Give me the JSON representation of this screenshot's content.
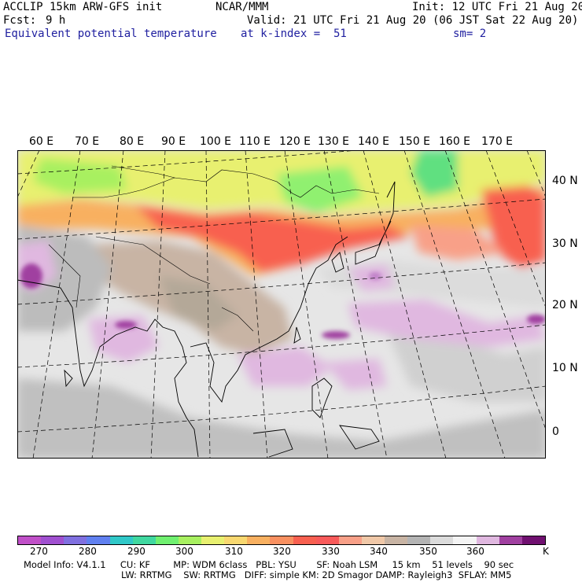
{
  "header": {
    "model": "ACCLIP 15km ARW-GFS init",
    "org": "NCAR/MMM",
    "init": "Init: 12 UTC Fri 21 Aug 20",
    "fcst_label": "Fcst:",
    "fcst_value": "9 h",
    "valid": "Valid: 21 UTC Fri 21 Aug 20 (06 JST Sat 22 Aug 20)",
    "field": "Equivalent potential temperature",
    "level": "at k-index =  51",
    "smooth": "sm= 2"
  },
  "map": {
    "lon_labels": [
      "60 E",
      "70 E",
      "80 E",
      "90 E",
      "100 E",
      "110 E",
      "120 E",
      "130 E",
      "140 E",
      "150 E",
      "160 E",
      "170 E"
    ],
    "lat_labels": [
      "40 N",
      "30 N",
      "20 N",
      "10 N",
      "0"
    ]
  },
  "colorbar": {
    "colors": [
      "#c050c8",
      "#a050d0",
      "#8070e0",
      "#6080f0",
      "#30c8c8",
      "#40d8a0",
      "#70f070",
      "#a8f060",
      "#e8f070",
      "#f8d870",
      "#f8b060",
      "#f89060",
      "#f86050",
      "#f85a5a",
      "#f8a088",
      "#f0c8a8",
      "#c8b4a4",
      "#b4b4b4",
      "#dcdcdc",
      "#f4f4f4",
      "#e0b8e0",
      "#a040a0",
      "#701070"
    ],
    "labels": [
      "270",
      "280",
      "290",
      "300",
      "310",
      "320",
      "330",
      "340",
      "350",
      "360"
    ],
    "unit": "K"
  },
  "footer": {
    "line1": "Model Info: V4.1.1     CU: KF        MP: WDM 6class   PBL: YSU       SF: Noah LSM     15 km    51 levels    90 sec",
    "line2": "LW: RRTMG    SW: RRTMG   DIFF: simple KM: 2D Smagor DAMP: Rayleigh3  SFLAY: MM5"
  }
}
